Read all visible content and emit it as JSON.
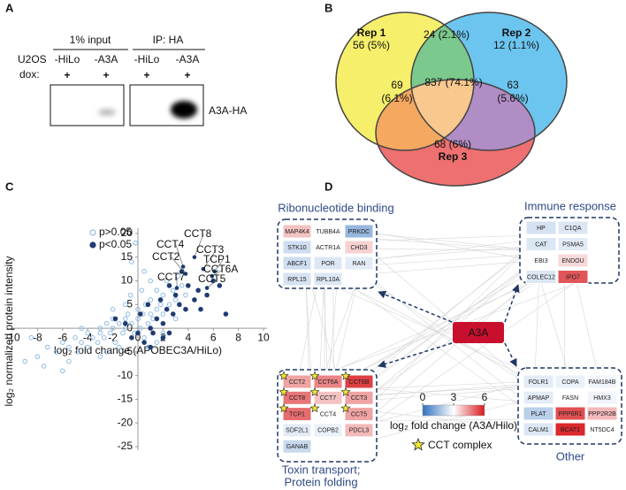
{
  "panel_a": {
    "letter": "A",
    "groups": [
      "1% input",
      "IP: HA"
    ],
    "row_labels": [
      "U2OS",
      "dox:"
    ],
    "lanes": [
      "-HiLo",
      "-A3A",
      "-HiLo",
      "-A3A"
    ],
    "dox": [
      "+",
      "+",
      "+",
      "+"
    ],
    "band_label": "A3A-HA"
  },
  "panel_b": {
    "letter": "B",
    "sets": [
      {
        "name": "Rep 1",
        "label": "56 (5%)",
        "color": "#f6ef6b"
      },
      {
        "name": "Rep 2",
        "label": "12 (1.1%)",
        "color": "#6cc5ef"
      },
      {
        "name": "Rep 3",
        "label": "68 (6%)",
        "color": "#ef7070"
      }
    ],
    "overlaps": [
      {
        "label": [
          "24 (2.1%)"
        ],
        "color": "#7bc98c"
      },
      {
        "label": [
          "69",
          "(6.1%)"
        ],
        "color": "#f4a860"
      },
      {
        "label": [
          "63",
          "(5.6%)"
        ],
        "color": "#b08dc4"
      },
      {
        "label": [
          "837 (74.1%)"
        ],
        "color": "#f8c88e"
      }
    ]
  },
  "chart_data": {
    "type": "scatter",
    "letter": "C",
    "xlabel": "log₂ fold change (APOBEC3A/HiLo)",
    "ylabel": "log₂ normalized protein intensity",
    "xlim": [
      -10,
      10
    ],
    "ylim": [
      -25,
      20
    ],
    "xticks": [
      -10,
      -8,
      -6,
      -4,
      -2,
      0,
      2,
      4,
      6,
      8,
      10
    ],
    "yticks": [
      -25,
      -20,
      -15,
      -10,
      -5,
      0,
      5,
      10,
      15,
      20
    ],
    "legend": "upper left",
    "series": [
      {
        "name": "p>0.05",
        "color": "#8fbbe5",
        "marker": "open",
        "x": [
          -9,
          -8,
          -7.2,
          -6.5,
          -6,
          -5.5,
          -5,
          -4.8,
          -4.5,
          -4,
          -4,
          -3.6,
          -3.2,
          -3,
          -3,
          -2.7,
          -2.5,
          -2.2,
          -2,
          -2,
          -1.8,
          -1.5,
          -1.2,
          -1,
          -1,
          -0.8,
          -0.5,
          -0.3,
          0,
          0,
          0.2,
          0.4,
          0.6,
          0.8,
          1,
          1,
          1.2,
          1.5,
          1.5,
          1.8,
          2,
          2,
          2.3,
          2.5,
          2.8,
          3,
          3.2,
          3.5,
          3.8,
          -0.5,
          -0.2,
          0.5,
          1,
          -6,
          -3,
          -1.5,
          0.5,
          1.5,
          -8.5,
          -7.5,
          -2,
          -1,
          0.3,
          -0.6,
          2,
          3,
          -4.5,
          -5.5,
          -2.5,
          0.8
        ],
        "values": [
          -7,
          -6,
          -4,
          -5,
          -3,
          -4,
          -2,
          -5,
          -3,
          -1,
          -4,
          -2,
          -3,
          0,
          -1,
          -2,
          1,
          -1,
          0,
          2,
          -3,
          1,
          -1,
          2,
          0,
          3,
          1,
          -1,
          2,
          4,
          0,
          3,
          5,
          1,
          3,
          6,
          2,
          4,
          8,
          5,
          3,
          7,
          10,
          5,
          8,
          6,
          11,
          9,
          7,
          14,
          18,
          12,
          10,
          -9,
          -6,
          -4,
          -2,
          -3,
          -2,
          -8,
          4,
          5,
          8,
          7,
          -1,
          2,
          0,
          -7,
          -5,
          -4
        ]
      },
      {
        "name": "p<0.05",
        "color": "#1f3b73",
        "marker": "filled",
        "x": [
          -1.8,
          -1,
          -0.5,
          0.2,
          0.5,
          0.8,
          1,
          1.2,
          1.5,
          1.8,
          2,
          2,
          2.3,
          2.5,
          2.8,
          3,
          3.3,
          3.5,
          3.8,
          4,
          4.5,
          4.8,
          5,
          5.5,
          6,
          6.5,
          7,
          0,
          1,
          2.5
        ],
        "values": [
          2,
          1,
          -2,
          3,
          -3,
          5,
          0,
          -1,
          2,
          6,
          1,
          -2,
          4,
          9,
          3,
          7,
          5,
          12,
          4,
          9,
          6,
          8,
          4,
          7,
          10,
          9,
          3,
          -1,
          -4,
          -1
        ]
      }
    ],
    "annotations": [
      {
        "text": "CCT8",
        "x": 4.5,
        "y": 15
      },
      {
        "text": "CCT4",
        "x": 3.6,
        "y": 13
      },
      {
        "text": "CCT3",
        "x": 5.2,
        "y": 12.5
      },
      {
        "text": "CCT2",
        "x": 3.8,
        "y": 11.5
      },
      {
        "text": "TCP1",
        "x": 6.1,
        "y": 12
      },
      {
        "text": "CCT6A",
        "x": 5.9,
        "y": 11
      },
      {
        "text": "CCT7",
        "x": 3.1,
        "y": 8.5
      },
      {
        "text": "CCT5",
        "x": 5.5,
        "y": 8.5
      }
    ]
  },
  "panel_d": {
    "letter": "D",
    "center": "A3A",
    "center_color": "#c8102e",
    "groups": [
      {
        "title": [
          "Ribonucleotide binding"
        ],
        "genes": [
          {
            "label": "MAP4K4",
            "value": 3.8
          },
          {
            "label": "TUBB4A",
            "value": 3.0
          },
          {
            "label": "PRKDC",
            "value": 1.5
          },
          {
            "label": "STK10",
            "value": 2.3
          },
          {
            "label": "ACTR1A",
            "value": 3.0
          },
          {
            "label": "CHD3",
            "value": 3.6
          },
          {
            "label": "ABCF1",
            "value": 2.3
          },
          {
            "label": "POR",
            "value": 2.5
          },
          {
            "label": "RAN",
            "value": 2.6
          },
          {
            "label": "RPL15",
            "value": 2.4
          },
          {
            "label": "RPL10A",
            "value": 2.5
          }
        ]
      },
      {
        "title": [
          "Immune response"
        ],
        "genes": [
          {
            "label": "HP",
            "value": 2.4
          },
          {
            "label": "C1QA",
            "value": 2.5
          },
          {
            "label": "CAT",
            "value": 2.5
          },
          {
            "label": "PSMA5",
            "value": 2.6
          },
          {
            "label": "EBI3",
            "value": 3.0
          },
          {
            "label": "ENDOU",
            "value": 3.5
          },
          {
            "label": "COLEC12",
            "value": 2.5
          },
          {
            "label": "IPO7",
            "value": 5.2
          }
        ]
      },
      {
        "title": [
          "Toxin transport;",
          "Protein folding"
        ],
        "genes": [
          {
            "label": "CCT2",
            "value": 4.2,
            "star": true
          },
          {
            "label": "CCT6A",
            "value": 4.6,
            "star": true
          },
          {
            "label": "CCT6B",
            "value": 5.5,
            "star": true
          },
          {
            "label": "CCT8",
            "value": 4.8,
            "star": true
          },
          {
            "label": "CCT7",
            "value": 3.8,
            "star": true
          },
          {
            "label": "CCT3",
            "value": 4.2,
            "star": true
          },
          {
            "label": "TCP1",
            "value": 4.9,
            "star": true
          },
          {
            "label": "CCT4",
            "value": 3.0,
            "star": true
          },
          {
            "label": "CCT5",
            "value": 4.2,
            "star": true
          },
          {
            "label": "SDF2L1",
            "value": 2.6
          },
          {
            "label": "COPB2",
            "value": 2.7
          },
          {
            "label": "PDCL3",
            "value": 3.9
          },
          {
            "label": "GANAB",
            "value": 2.2
          }
        ]
      },
      {
        "title": [
          "Other"
        ],
        "genes": [
          {
            "label": "FOLR1",
            "value": 2.6
          },
          {
            "label": "COPA",
            "value": 2.7
          },
          {
            "label": "FAM184B",
            "value": 2.8
          },
          {
            "label": "APMAP",
            "value": 2.6
          },
          {
            "label": "FASN",
            "value": 3.0
          },
          {
            "label": "HMX3",
            "value": 2.8
          },
          {
            "label": "PLAT",
            "value": 2.0
          },
          {
            "label": "PPP6R1",
            "value": 5.3
          },
          {
            "label": "PPP2R2B",
            "value": 3.9
          },
          {
            "label": "CALM1",
            "value": 2.5
          },
          {
            "label": "BCAT1",
            "value": 5.8
          },
          {
            "label": "NT5DC4",
            "value": 3.0
          }
        ]
      }
    ],
    "colorbar": {
      "lim": [
        0,
        6
      ],
      "ticks": [
        0,
        3,
        6
      ],
      "colors": [
        "#2f6fbf",
        "#ffffff",
        "#d7191c"
      ],
      "label": "log₂ fold change (A3A/Hilo)"
    },
    "star_label": "CCT complex",
    "star_color": "#f2e832"
  }
}
